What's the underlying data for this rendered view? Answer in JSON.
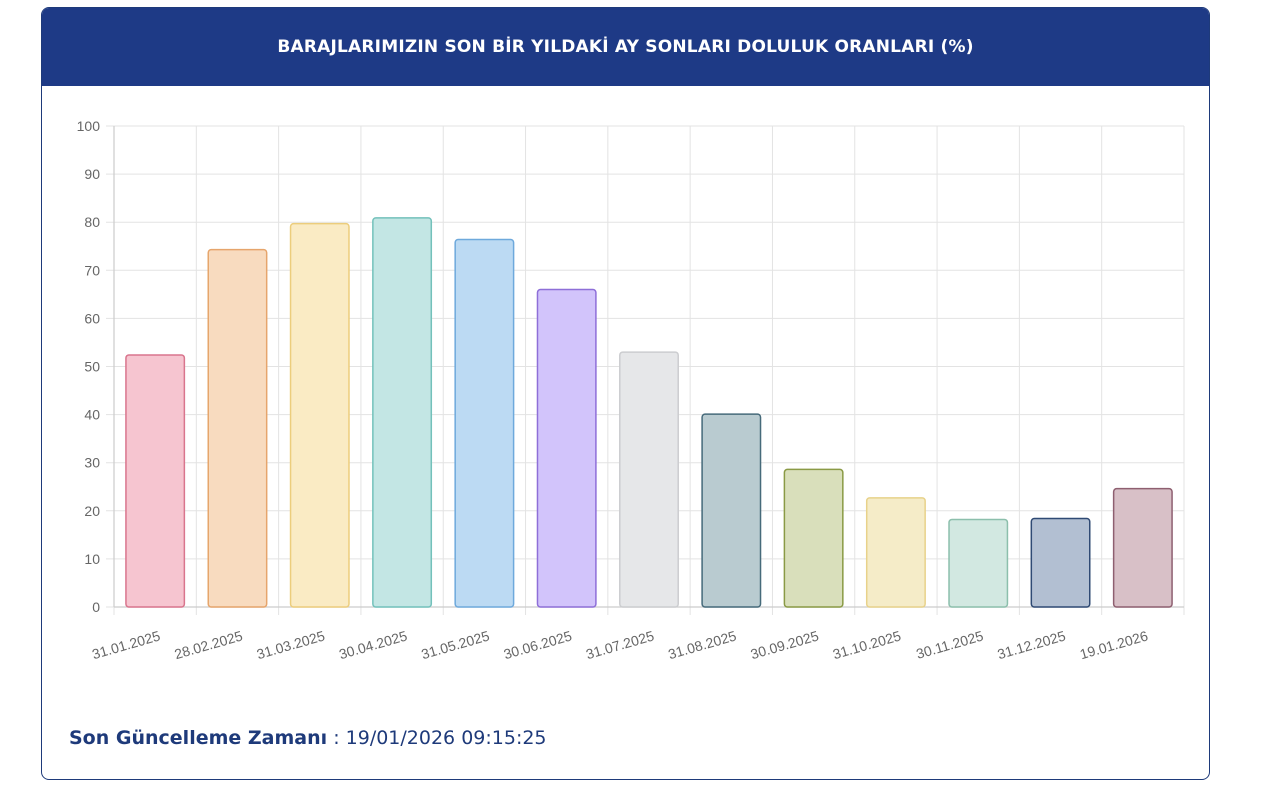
{
  "header": {
    "title": "BARAJLARIMIZIN SON BİR YILDAKİ AY SONLARI DOLULUK ORANLARI (%)"
  },
  "footer": {
    "label": "Son Güncelleme Zamanı",
    "separator": " : ",
    "value": "19/01/2026 09:15:25"
  },
  "chart_data": {
    "type": "bar",
    "title": "BARAJLARIMIZIN SON BİR YILDAKİ AY SONLARI DOLULUK ORANLARI (%)",
    "categories": [
      "31.01.2025",
      "28.02.2025",
      "31.03.2025",
      "30.04.2025",
      "31.05.2025",
      "30.06.2025",
      "31.07.2025",
      "31.08.2025",
      "30.09.2025",
      "31.10.2025",
      "30.11.2025",
      "31.12.2025",
      "19.01.2026"
    ],
    "values": [
      52.4,
      74.3,
      79.7,
      80.9,
      76.4,
      66.0,
      53.0,
      40.1,
      28.6,
      22.7,
      18.2,
      18.4,
      24.6
    ],
    "ylim": [
      0,
      100
    ],
    "yticks": [
      0,
      10,
      20,
      30,
      40,
      50,
      60,
      70,
      80,
      90,
      100
    ],
    "grid": true,
    "legend": "none",
    "bar_fills": [
      "#f6c5d0",
      "#f8dbbf",
      "#faebc4",
      "#c3e6e4",
      "#bcdaf3",
      "#d2c4fb",
      "#e6e7e9",
      "#b9cbd0",
      "#d9dfbb",
      "#f5ecc8",
      "#d2e8e1",
      "#b2bfd2",
      "#d8c0c7"
    ],
    "bar_strokes": [
      "#d9758d",
      "#e6a56c",
      "#eccd7c",
      "#73c1bb",
      "#6ea9dc",
      "#8e6fd8",
      "#cccdd0",
      "#466a7a",
      "#8a9a45",
      "#e8d28a",
      "#8cbfac",
      "#2f4a74",
      "#8e5f70"
    ]
  }
}
